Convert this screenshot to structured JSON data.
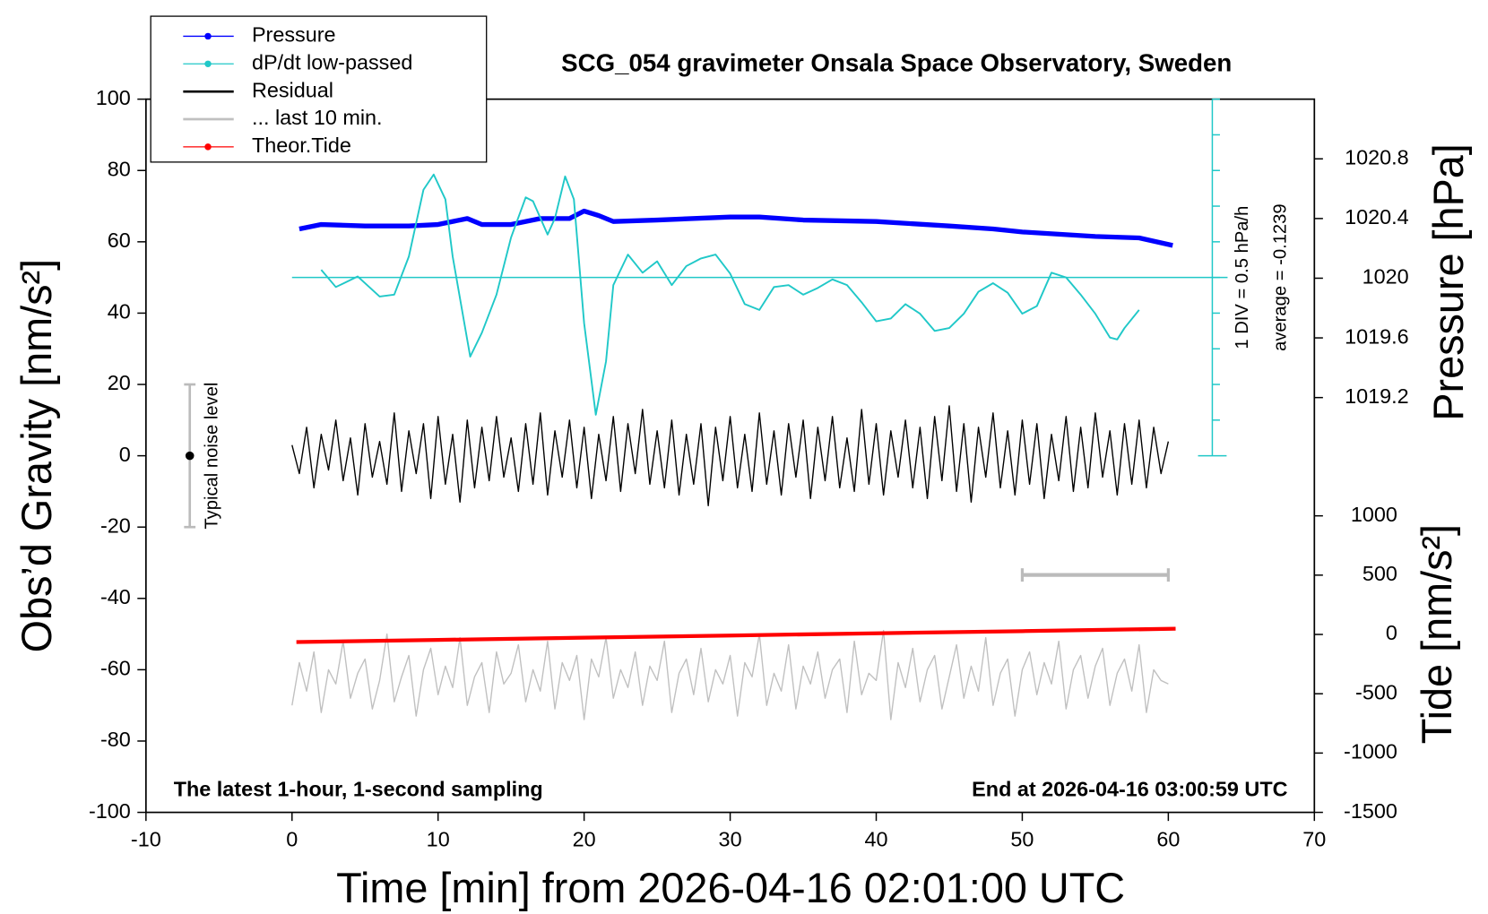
{
  "chart_data": {
    "type": "line",
    "title": "SCG_054 gravimeter Onsala Space Observatory, Sweden",
    "xlabel": "Time [min] from 2026-04-16 02:01:00 UTC",
    "ylabel": "Obs’d Gravity [nm/s²]",
    "y2label": "Pressure [hPa]",
    "y3label": "Tide [nm/s²]",
    "annotation_left": "The latest 1-hour, 1-second sampling",
    "annotation_right": "End at 2026-04-16 03:00:59 UTC",
    "xlim": [
      -10,
      70
    ],
    "xticks": [
      -10,
      0,
      10,
      20,
      30,
      40,
      50,
      60,
      70
    ],
    "ylim": [
      -100,
      100
    ],
    "yticks": [
      -100,
      -80,
      -60,
      -40,
      -20,
      0,
      20,
      40,
      60,
      80,
      100
    ],
    "y2lim": [
      1016.42,
      1021.2
    ],
    "y2ticks": [
      1019.2,
      1019.6,
      1020.0,
      1020.4,
      1020.8
    ],
    "y3lim": [
      -1500,
      4513
    ],
    "y3ticks": [
      -1500,
      -1000,
      -500,
      0,
      500,
      1000
    ],
    "y4lim": [
      -2.6239,
      2.3761
    ],
    "y4ticks": [
      -2.6239,
      -2.1239,
      -1.6239,
      -1.1239,
      -0.6239,
      -0.1239,
      0.3761,
      0.8761,
      1.3761,
      1.8761,
      2.3761
    ],
    "dpdt_average": {
      "value": -0.1239,
      "label": "average = -0.1239"
    },
    "dpdt_scale_label": "1 DIV = 0.5 hPa/h",
    "noise_bar": {
      "x": -7,
      "value": 0,
      "error": 20,
      "label": "Typical noise level"
    },
    "last10_span": [
      50,
      60
    ],
    "series": [
      {
        "name": "Pressure",
        "color": "#0000ff",
        "axis": "y2",
        "marker": true,
        "x": [
          0.5,
          2,
          5,
          8,
          10,
          12,
          13,
          15,
          17,
          19,
          20,
          21,
          22,
          25,
          30,
          32,
          35,
          40,
          45,
          48,
          50,
          55,
          58,
          60.3
        ],
        "values": [
          1020.33,
          1020.36,
          1020.35,
          1020.35,
          1020.36,
          1020.4,
          1020.36,
          1020.36,
          1020.4,
          1020.4,
          1020.45,
          1020.42,
          1020.38,
          1020.39,
          1020.41,
          1020.41,
          1020.39,
          1020.38,
          1020.35,
          1020.33,
          1020.31,
          1020.28,
          1020.27,
          1020.22
        ]
      },
      {
        "name": "dP/dt low-passed",
        "color": "#20c8c8",
        "axis": "y4",
        "marker": true,
        "x": [
          2,
          3,
          4.5,
          6,
          7,
          8,
          9,
          9.7,
          10.5,
          11,
          12.2,
          13,
          14,
          15,
          16,
          16.5,
          17.5,
          18,
          18.7,
          19.3,
          20,
          20.8,
          21.5,
          22,
          23,
          24,
          25,
          26,
          27,
          28,
          29,
          30,
          31,
          32,
          33,
          34,
          35,
          36,
          37,
          38,
          39,
          40,
          41,
          42,
          43,
          44,
          45,
          46,
          47,
          48,
          49,
          50,
          51,
          52,
          53,
          54,
          55,
          56,
          56.5,
          57,
          58
        ],
        "values": [
          -0.017,
          -0.258,
          -0.11,
          -0.391,
          -0.365,
          0.17,
          1.106,
          1.32,
          0.972,
          0.17,
          -1.234,
          -0.899,
          -0.365,
          0.438,
          0.999,
          0.946,
          0.478,
          0.705,
          1.293,
          0.972,
          -0.766,
          -2.049,
          -1.3,
          -0.231,
          0.197,
          -0.057,
          0.103,
          -0.231,
          0.036,
          0.143,
          0.197,
          -0.07,
          -0.498,
          -0.579,
          -0.258,
          -0.231,
          -0.365,
          -0.271,
          -0.151,
          -0.231,
          -0.472,
          -0.739,
          -0.699,
          -0.498,
          -0.632,
          -0.873,
          -0.833,
          -0.632,
          -0.324,
          -0.204,
          -0.338,
          -0.632,
          -0.525,
          -0.057,
          -0.124,
          -0.365,
          -0.632,
          -0.966,
          -0.993,
          -0.833,
          -0.579
        ]
      },
      {
        "name": "Residual",
        "color": "#000000",
        "axis": "y",
        "marker": false,
        "x": [
          0,
          0.5,
          1,
          1.5,
          2,
          2.5,
          3,
          3.5,
          4,
          4.5,
          5,
          5.5,
          6,
          6.5,
          7,
          7.5,
          8,
          8.5,
          9,
          9.5,
          10,
          10.5,
          11,
          11.5,
          12,
          12.5,
          13,
          13.5,
          14,
          14.5,
          15,
          15.5,
          16,
          16.5,
          17,
          17.5,
          18,
          18.5,
          19,
          19.5,
          20,
          20.5,
          21,
          21.5,
          22,
          22.5,
          23,
          23.5,
          24,
          24.5,
          25,
          25.5,
          26,
          26.5,
          27,
          27.5,
          28,
          28.5,
          29,
          29.5,
          30,
          30.5,
          31,
          31.5,
          32,
          32.5,
          33,
          33.5,
          34,
          34.5,
          35,
          35.5,
          36,
          36.5,
          37,
          37.5,
          38,
          38.5,
          39,
          39.5,
          40,
          40.5,
          41,
          41.5,
          42,
          42.5,
          43,
          43.5,
          44,
          44.5,
          45,
          45.5,
          46,
          46.5,
          47,
          47.5,
          48,
          48.5,
          49,
          49.5,
          50,
          50.5,
          51,
          51.5,
          52,
          52.5,
          53,
          53.5,
          54,
          54.5,
          55,
          55.5,
          56,
          56.5,
          57,
          57.5,
          58,
          58.5,
          59,
          59.5,
          60
        ],
        "values": [
          3,
          -5,
          8,
          -9,
          6,
          -4,
          10,
          -7,
          5,
          -11,
          9,
          -6,
          4,
          -8,
          12,
          -10,
          7,
          -5,
          9,
          -12,
          11,
          -8,
          6,
          -13,
          10,
          -9,
          8,
          -7,
          11,
          -6,
          5,
          -10,
          9,
          -8,
          12,
          -11,
          7,
          -6,
          10,
          -9,
          8,
          -12,
          6,
          -7,
          11,
          -10,
          9,
          -5,
          13,
          -8,
          7,
          -9,
          10,
          -11,
          6,
          -8,
          9,
          -14,
          8,
          -7,
          11,
          -9,
          6,
          -10,
          12,
          -8,
          7,
          -11,
          9,
          -6,
          10,
          -12,
          8,
          -7,
          11,
          -9,
          5,
          -10,
          13,
          -8,
          9,
          -11,
          7,
          -6,
          10,
          -9,
          8,
          -12,
          11,
          -7,
          14,
          -10,
          9,
          -13,
          8,
          -6,
          12,
          -9,
          7,
          -11,
          10,
          -8,
          9,
          -12,
          6,
          -7,
          11,
          -10,
          8,
          -9,
          12,
          -6,
          7,
          -11,
          9,
          -8,
          10,
          -9,
          8,
          -5,
          4
        ]
      },
      {
        "name": "... last 10 min.",
        "color": "#c0c0c0",
        "axis": "y",
        "marker": false,
        "x": [
          0,
          0.5,
          1,
          1.5,
          2,
          2.5,
          3,
          3.5,
          4,
          4.5,
          5,
          5.5,
          6,
          6.5,
          7,
          7.5,
          8,
          8.5,
          9,
          9.5,
          10,
          10.5,
          11,
          11.5,
          12,
          12.5,
          13,
          13.5,
          14,
          14.5,
          15,
          15.5,
          16,
          16.5,
          17,
          17.5,
          18,
          18.5,
          19,
          19.5,
          20,
          20.5,
          21,
          21.5,
          22,
          22.5,
          23,
          23.5,
          24,
          24.5,
          25,
          25.5,
          26,
          26.5,
          27,
          27.5,
          28,
          28.5,
          29,
          29.5,
          30,
          30.5,
          31,
          31.5,
          32,
          32.5,
          33,
          33.5,
          34,
          34.5,
          35,
          35.5,
          36,
          36.5,
          37,
          37.5,
          38,
          38.5,
          39,
          39.5,
          40,
          40.5,
          41,
          41.5,
          42,
          42.5,
          43,
          43.5,
          44,
          44.5,
          45,
          45.5,
          46,
          46.5,
          47,
          47.5,
          48,
          48.5,
          49,
          49.5,
          50,
          50.5,
          51,
          51.5,
          52,
          52.5,
          53,
          53.5,
          54,
          54.5,
          55,
          55.5,
          56,
          56.5,
          57,
          57.5,
          58,
          58.5,
          59,
          59.5,
          60
        ],
        "values": [
          -70,
          -58,
          -66,
          -55,
          -72,
          -60,
          -64,
          -52,
          -68,
          -61,
          -57,
          -71,
          -63,
          -50,
          -69,
          -62,
          -56,
          -73,
          -60,
          -54,
          -67,
          -59,
          -65,
          -51,
          -70,
          -62,
          -58,
          -72,
          -55,
          -64,
          -61,
          -53,
          -69,
          -60,
          -66,
          -52,
          -71,
          -58,
          -63,
          -56,
          -74,
          -57,
          -62,
          -51,
          -68,
          -60,
          -65,
          -55,
          -70,
          -59,
          -63,
          -52,
          -72,
          -61,
          -57,
          -67,
          -54,
          -69,
          -60,
          -64,
          -56,
          -73,
          -58,
          -62,
          -50,
          -70,
          -61,
          -66,
          -53,
          -71,
          -59,
          -64,
          -55,
          -68,
          -60,
          -57,
          -72,
          -52,
          -67,
          -61,
          -63,
          -49,
          -74,
          -58,
          -65,
          -54,
          -69,
          -60,
          -56,
          -71,
          -62,
          -53,
          -68,
          -59,
          -66,
          -51,
          -70,
          -61,
          -57,
          -73,
          -60,
          -55,
          -67,
          -58,
          -64,
          -52,
          -71,
          -60,
          -56,
          -68,
          -59,
          -54,
          -70,
          -61,
          -57,
          -66,
          -53,
          -72,
          -60,
          -63,
          -64
        ]
      },
      {
        "name": "Theor.Tide",
        "color": "#ff0000",
        "axis": "y3",
        "marker": true,
        "x": [
          0.3,
          10,
          20,
          30,
          40,
          50,
          60.5
        ],
        "values": [
          -64,
          -46,
          -27,
          -9,
          10,
          28,
          48
        ]
      }
    ]
  }
}
